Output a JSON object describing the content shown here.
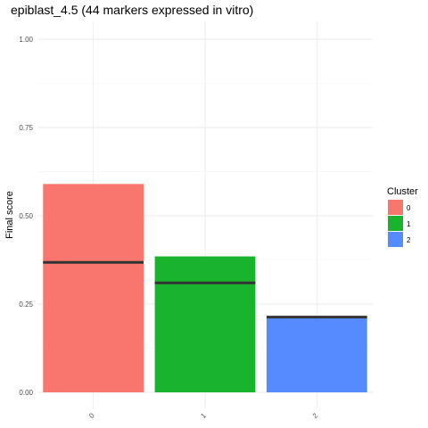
{
  "chart_data": {
    "type": "bar",
    "title": "epiblast_4.5 (44 markers expressed in vitro)",
    "xlabel": "",
    "ylabel": "Final score",
    "categories": [
      "0",
      "1",
      "2"
    ],
    "values": [
      0.59,
      0.385,
      0.21
    ],
    "medians": [
      0.368,
      0.31,
      0.213
    ],
    "colors": [
      "#F8766D",
      "#1AB32E",
      "#558BFF"
    ],
    "median_color": "#333333",
    "ylim": [
      0,
      1
    ],
    "yticks": [
      0,
      0.25,
      0.5,
      0.75,
      1
    ],
    "ytick_labels": [
      "0.00",
      "0.25",
      "0.50",
      "0.75",
      "1.00"
    ],
    "grid": true,
    "legend": {
      "title": "Cluster",
      "placement": "right",
      "labels": [
        "0",
        "1",
        "2"
      ]
    }
  }
}
